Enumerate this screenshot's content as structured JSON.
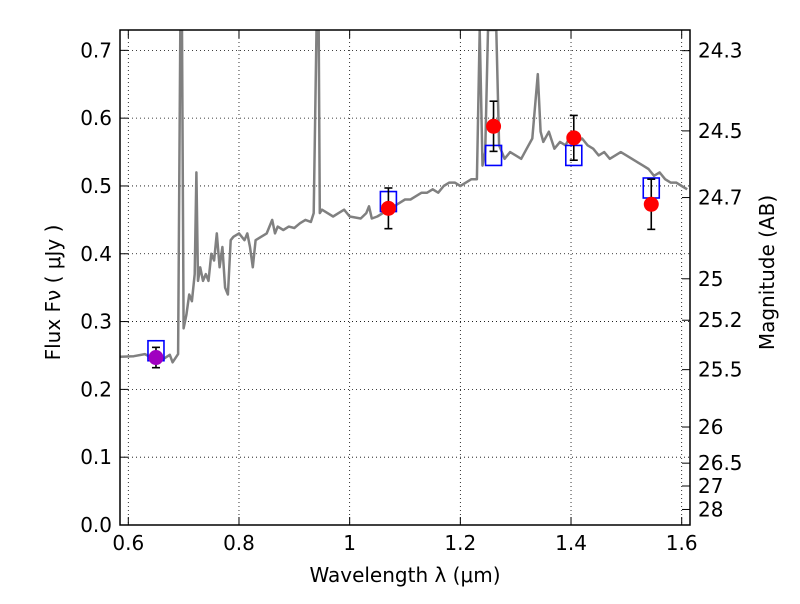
{
  "chart_data": {
    "type": "scatter",
    "title": "",
    "xlabel": "Wavelength  λ (μm)",
    "ylabel": "Flux  Fν  ( μJy )",
    "y2label": "Magnitude (AB)",
    "xlim": [
      0.585,
      1.615
    ],
    "ylim": [
      0.0,
      0.73
    ],
    "grid": true,
    "x_ticks": [
      {
        "value": 0.6,
        "label": "0.6"
      },
      {
        "value": 0.8,
        "label": "0.8"
      },
      {
        "value": 1.0,
        "label": "1"
      },
      {
        "value": 1.2,
        "label": "1.2"
      },
      {
        "value": 1.4,
        "label": "1.4"
      },
      {
        "value": 1.6,
        "label": "1.6"
      }
    ],
    "y_ticks": [
      {
        "value": 0.0,
        "label": "0.0"
      },
      {
        "value": 0.1,
        "label": "0.1"
      },
      {
        "value": 0.2,
        "label": "0.2"
      },
      {
        "value": 0.3,
        "label": "0.3"
      },
      {
        "value": 0.4,
        "label": "0.4"
      },
      {
        "value": 0.5,
        "label": "0.5"
      },
      {
        "value": 0.6,
        "label": "0.6"
      },
      {
        "value": 0.7,
        "label": "0.7"
      }
    ],
    "right_ticks": [
      {
        "mag": "24.3",
        "flux": 0.6995
      },
      {
        "mag": "24.5",
        "flux": 0.5812
      },
      {
        "mag": "24.7",
        "flux": 0.4829
      },
      {
        "mag": "25",
        "flux": 0.3631
      },
      {
        "mag": "25.2",
        "flux": 0.302
      },
      {
        "mag": "25.5",
        "flux": 0.2291
      },
      {
        "mag": "26",
        "flux": 0.1445
      },
      {
        "mag": "26.5",
        "flux": 0.0912
      },
      {
        "mag": "27",
        "flux": 0.0575
      },
      {
        "mag": "28",
        "flux": 0.0229
      }
    ],
    "series": [
      {
        "kind": "line",
        "color": "#808080",
        "points": [
          [
            0.585,
            0.248
          ],
          [
            0.61,
            0.249
          ],
          [
            0.63,
            0.252
          ],
          [
            0.648,
            0.244
          ],
          [
            0.66,
            0.243
          ],
          [
            0.675,
            0.251
          ],
          [
            0.68,
            0.24
          ],
          [
            0.69,
            0.252
          ],
          [
            0.694,
            0.73
          ],
          [
            0.697,
            0.73
          ],
          [
            0.7,
            0.29
          ],
          [
            0.705,
            0.31
          ],
          [
            0.71,
            0.34
          ],
          [
            0.715,
            0.33
          ],
          [
            0.72,
            0.37
          ],
          [
            0.723,
            0.52
          ],
          [
            0.726,
            0.36
          ],
          [
            0.73,
            0.38
          ],
          [
            0.735,
            0.36
          ],
          [
            0.74,
            0.37
          ],
          [
            0.745,
            0.36
          ],
          [
            0.75,
            0.4
          ],
          [
            0.755,
            0.39
          ],
          [
            0.76,
            0.43
          ],
          [
            0.765,
            0.38
          ],
          [
            0.77,
            0.41
          ],
          [
            0.775,
            0.35
          ],
          [
            0.78,
            0.34
          ],
          [
            0.785,
            0.42
          ],
          [
            0.79,
            0.425
          ],
          [
            0.8,
            0.43
          ],
          [
            0.81,
            0.42
          ],
          [
            0.815,
            0.43
          ],
          [
            0.82,
            0.41
          ],
          [
            0.825,
            0.38
          ],
          [
            0.83,
            0.42
          ],
          [
            0.84,
            0.425
          ],
          [
            0.85,
            0.43
          ],
          [
            0.86,
            0.45
          ],
          [
            0.865,
            0.43
          ],
          [
            0.87,
            0.44
          ],
          [
            0.88,
            0.435
          ],
          [
            0.89,
            0.44
          ],
          [
            0.9,
            0.438
          ],
          [
            0.91,
            0.445
          ],
          [
            0.92,
            0.45
          ],
          [
            0.93,
            0.447
          ],
          [
            0.935,
            0.46
          ],
          [
            0.94,
            0.73
          ],
          [
            0.944,
            0.73
          ],
          [
            0.946,
            0.46
          ],
          [
            0.95,
            0.465
          ],
          [
            0.96,
            0.46
          ],
          [
            0.97,
            0.455
          ],
          [
            0.98,
            0.46
          ],
          [
            0.99,
            0.465
          ],
          [
            1.0,
            0.455
          ],
          [
            1.02,
            0.452
          ],
          [
            1.03,
            0.46
          ],
          [
            1.035,
            0.47
          ],
          [
            1.04,
            0.452
          ],
          [
            1.05,
            0.455
          ],
          [
            1.06,
            0.46
          ],
          [
            1.07,
            0.465
          ],
          [
            1.08,
            0.47
          ],
          [
            1.09,
            0.475
          ],
          [
            1.1,
            0.48
          ],
          [
            1.11,
            0.48
          ],
          [
            1.12,
            0.485
          ],
          [
            1.13,
            0.49
          ],
          [
            1.14,
            0.49
          ],
          [
            1.15,
            0.495
          ],
          [
            1.16,
            0.49
          ],
          [
            1.17,
            0.5
          ],
          [
            1.18,
            0.505
          ],
          [
            1.19,
            0.505
          ],
          [
            1.2,
            0.5
          ],
          [
            1.21,
            0.505
          ],
          [
            1.22,
            0.51
          ],
          [
            1.23,
            0.51
          ],
          [
            1.235,
            0.73
          ],
          [
            1.24,
            0.53
          ],
          [
            1.245,
            0.55
          ],
          [
            1.25,
            0.73
          ],
          [
            1.255,
            0.73
          ],
          [
            1.26,
            0.73
          ],
          [
            1.265,
            0.73
          ],
          [
            1.27,
            0.56
          ],
          [
            1.28,
            0.54
          ],
          [
            1.29,
            0.55
          ],
          [
            1.3,
            0.545
          ],
          [
            1.31,
            0.54
          ],
          [
            1.32,
            0.555
          ],
          [
            1.33,
            0.57
          ],
          [
            1.34,
            0.665
          ],
          [
            1.345,
            0.58
          ],
          [
            1.35,
            0.565
          ],
          [
            1.36,
            0.58
          ],
          [
            1.37,
            0.555
          ],
          [
            1.38,
            0.565
          ],
          [
            1.39,
            0.56
          ],
          [
            1.4,
            0.575
          ],
          [
            1.41,
            0.565
          ],
          [
            1.42,
            0.57
          ],
          [
            1.43,
            0.56
          ],
          [
            1.44,
            0.555
          ],
          [
            1.45,
            0.545
          ],
          [
            1.46,
            0.55
          ],
          [
            1.47,
            0.54
          ],
          [
            1.48,
            0.545
          ],
          [
            1.49,
            0.55
          ],
          [
            1.5,
            0.545
          ],
          [
            1.51,
            0.54
          ],
          [
            1.52,
            0.535
          ],
          [
            1.53,
            0.53
          ],
          [
            1.54,
            0.525
          ],
          [
            1.55,
            0.515
          ],
          [
            1.56,
            0.52
          ],
          [
            1.57,
            0.51
          ],
          [
            1.58,
            0.505
          ],
          [
            1.59,
            0.505
          ],
          [
            1.6,
            0.5
          ],
          [
            1.61,
            0.495
          ]
        ]
      },
      {
        "kind": "open-squares",
        "color": "#0000ff",
        "points": [
          [
            0.65,
            0.257
          ],
          [
            1.07,
            0.477
          ],
          [
            1.26,
            0.545
          ],
          [
            1.405,
            0.545
          ],
          [
            1.545,
            0.497
          ]
        ]
      },
      {
        "kind": "filled-circles-with-errorbars",
        "points": [
          {
            "x": 0.65,
            "y": 0.247,
            "err": 0.015,
            "color": "#a000c0"
          },
          {
            "x": 1.07,
            "y": 0.467,
            "err": 0.03,
            "color": "#ff0000"
          },
          {
            "x": 1.26,
            "y": 0.588,
            "err": 0.037,
            "color": "#ff0000"
          },
          {
            "x": 1.405,
            "y": 0.571,
            "err": 0.033,
            "color": "#ff0000"
          },
          {
            "x": 1.545,
            "y": 0.473,
            "err": 0.037,
            "color": "#ff0000"
          }
        ]
      }
    ]
  }
}
